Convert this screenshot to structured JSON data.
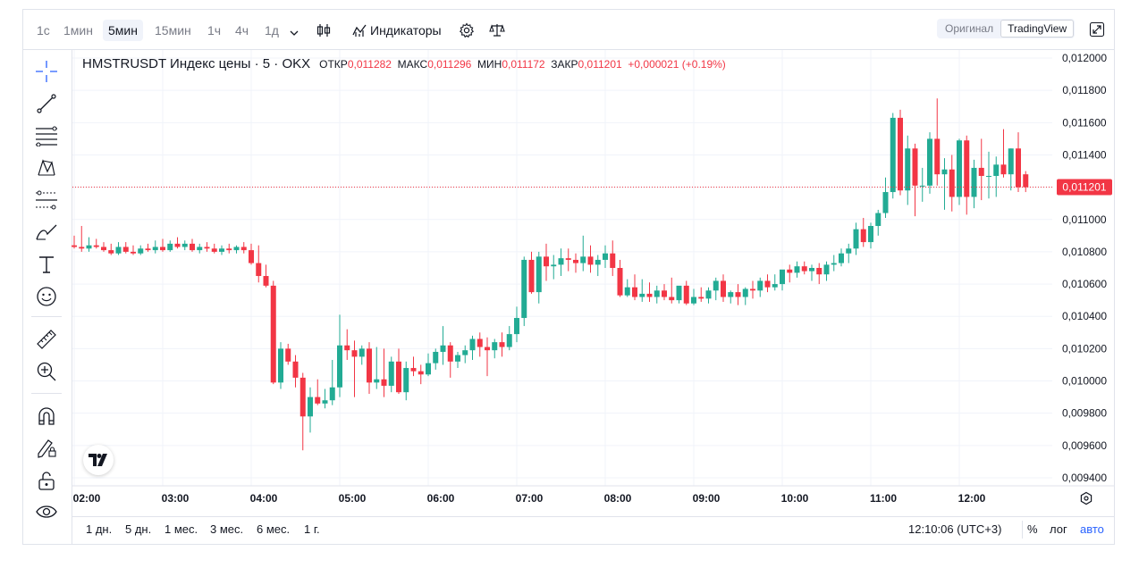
{
  "toolbar": {
    "timeframes": [
      "1с",
      "1мин",
      "5мин",
      "15мин",
      "1ч",
      "4ч",
      "1д"
    ],
    "active_timeframe": "5мин",
    "indicators_label": "Индикаторы",
    "view_options": [
      "Оригинал",
      "TradingView"
    ],
    "active_view": "TradingView"
  },
  "legend": {
    "symbol": "HMSTRUSDT Индекс цены · 5 · OKX",
    "open_label": "ОТКР",
    "open": "0,011282",
    "high_label": "МАКС",
    "high": "0,011296",
    "low_label": "МИН",
    "low": "0,011172",
    "close_label": "ЗАКР",
    "close": "0,011201",
    "change": "+0,000021 (+0.19%)"
  },
  "bottom": {
    "ranges": [
      "1 дн.",
      "5 дн.",
      "1 мес.",
      "3 мес.",
      "6 мес.",
      "1 г."
    ],
    "clock": "12:10:06 (UTC+3)",
    "percent": "%",
    "log": "лог",
    "auto": "авто"
  },
  "logo_text": "TV",
  "colors": {
    "up": "#22ab94",
    "down": "#f23645",
    "grid": "#f0f3fa",
    "price_line": "#f23645"
  },
  "chart_data": {
    "type": "candlestick",
    "price_label": "0,011201",
    "last_price": 0.011201,
    "ylim": [
      0.00935,
      0.01205
    ],
    "y_ticks": [
      {
        "v": 0.012,
        "label": "0,012000"
      },
      {
        "v": 0.0118,
        "label": "0,011800"
      },
      {
        "v": 0.0116,
        "label": "0,011600"
      },
      {
        "v": 0.0114,
        "label": "0,011400"
      },
      {
        "v": 0.0112,
        "label": "0,011200"
      },
      {
        "v": 0.011,
        "label": "0,011000"
      },
      {
        "v": 0.0108,
        "label": "0,010800"
      },
      {
        "v": 0.0106,
        "label": "0,010600"
      },
      {
        "v": 0.0104,
        "label": "0,010400"
      },
      {
        "v": 0.0102,
        "label": "0,010200"
      },
      {
        "v": 0.01,
        "label": "0,010000"
      },
      {
        "v": 0.0098,
        "label": "0,009800"
      },
      {
        "v": 0.0096,
        "label": "0,009600"
      },
      {
        "v": 0.0094,
        "label": "0,009400"
      }
    ],
    "x_ticks": [
      {
        "i": 0,
        "label": "02:00"
      },
      {
        "i": 12,
        "label": "03:00"
      },
      {
        "i": 24,
        "label": "04:00"
      },
      {
        "i": 36,
        "label": "05:00"
      },
      {
        "i": 48,
        "label": "06:00"
      },
      {
        "i": 60,
        "label": "07:00"
      },
      {
        "i": 72,
        "label": "08:00"
      },
      {
        "i": 84,
        "label": "09:00"
      },
      {
        "i": 96,
        "label": "10:00"
      },
      {
        "i": 108,
        "label": "11:00"
      },
      {
        "i": 120,
        "label": "12:00"
      }
    ],
    "candles": [
      [
        0.01084,
        0.0109,
        0.01082,
        0.01083
      ],
      [
        0.01083,
        0.01096,
        0.0108,
        0.01082
      ],
      [
        0.01082,
        0.01089,
        0.0108,
        0.01084
      ],
      [
        0.01084,
        0.01088,
        0.01082,
        0.01083
      ],
      [
        0.01083,
        0.01086,
        0.0108,
        0.01081
      ],
      [
        0.01081,
        0.01085,
        0.01078,
        0.01079
      ],
      [
        0.01079,
        0.01086,
        0.01078,
        0.01083
      ],
      [
        0.01083,
        0.01086,
        0.01079,
        0.0108
      ],
      [
        0.0108,
        0.01084,
        0.01078,
        0.01079
      ],
      [
        0.01079,
        0.01084,
        0.01078,
        0.01082
      ],
      [
        0.01082,
        0.01085,
        0.0108,
        0.01081
      ],
      [
        0.01081,
        0.01087,
        0.01079,
        0.01083
      ],
      [
        0.01083,
        0.01088,
        0.0108,
        0.01081
      ],
      [
        0.01081,
        0.01087,
        0.0108,
        0.01085
      ],
      [
        0.01085,
        0.01089,
        0.01082,
        0.01083
      ],
      [
        0.01083,
        0.01087,
        0.01081,
        0.01085
      ],
      [
        0.01085,
        0.01088,
        0.0108,
        0.01081
      ],
      [
        0.01081,
        0.01085,
        0.01079,
        0.01083
      ],
      [
        0.01083,
        0.01086,
        0.0108,
        0.01082
      ],
      [
        0.01082,
        0.01085,
        0.01079,
        0.0108
      ],
      [
        0.0108,
        0.01084,
        0.01078,
        0.01082
      ],
      [
        0.01082,
        0.01085,
        0.01079,
        0.01081
      ],
      [
        0.01081,
        0.01084,
        0.01079,
        0.01083
      ],
      [
        0.01083,
        0.01086,
        0.01079,
        0.01081
      ],
      [
        0.01081,
        0.01085,
        0.01072,
        0.01073
      ],
      [
        0.01073,
        0.01084,
        0.01061,
        0.01065
      ],
      [
        0.01065,
        0.01072,
        0.01058,
        0.01059
      ],
      [
        0.01059,
        0.01062,
        0.00998,
        0.00999
      ],
      [
        0.00999,
        0.01024,
        0.00995,
        0.0102
      ],
      [
        0.0102,
        0.01023,
        0.0101,
        0.01012
      ],
      [
        0.01012,
        0.01016,
        0.00996,
        0.01002
      ],
      [
        0.01002,
        0.01005,
        0.00957,
        0.00978
      ],
      [
        0.00978,
        0.00996,
        0.00968,
        0.0099
      ],
      [
        0.0099,
        0.01001,
        0.00985,
        0.00986
      ],
      [
        0.00986,
        0.00995,
        0.00983,
        0.00988
      ],
      [
        0.00988,
        0.01013,
        0.00985,
        0.00996
      ],
      [
        0.00996,
        0.01041,
        0.0099,
        0.01022
      ],
      [
        0.01022,
        0.01032,
        0.01013,
        0.01019
      ],
      [
        0.01019,
        0.01025,
        0.0099,
        0.01015
      ],
      [
        0.01015,
        0.01022,
        0.0101,
        0.0102
      ],
      [
        0.0102,
        0.01024,
        0.00992,
        0.00999
      ],
      [
        0.00999,
        0.01021,
        0.00995,
        0.01001
      ],
      [
        0.01001,
        0.0102,
        0.0099,
        0.00997
      ],
      [
        0.00997,
        0.01015,
        0.00993,
        0.01012
      ],
      [
        0.01012,
        0.0102,
        0.00992,
        0.00993
      ],
      [
        0.00993,
        0.01012,
        0.00988,
        0.01008
      ],
      [
        0.01008,
        0.01015,
        0.01003,
        0.01006
      ],
      [
        0.01006,
        0.0101,
        0.00998,
        0.01004
      ],
      [
        0.01004,
        0.01017,
        0.01003,
        0.01011
      ],
      [
        0.01011,
        0.0102,
        0.01007,
        0.01018
      ],
      [
        0.01018,
        0.01034,
        0.0101,
        0.01022
      ],
      [
        0.01022,
        0.01024,
        0.01002,
        0.01012
      ],
      [
        0.01012,
        0.01018,
        0.01008,
        0.01016
      ],
      [
        0.01016,
        0.01022,
        0.01011,
        0.01019
      ],
      [
        0.01019,
        0.01028,
        0.01013,
        0.01026
      ],
      [
        0.01026,
        0.0103,
        0.01015,
        0.01021
      ],
      [
        0.01021,
        0.01027,
        0.01003,
        0.01019
      ],
      [
        0.01019,
        0.01026,
        0.01014,
        0.01024
      ],
      [
        0.01024,
        0.0103,
        0.01015,
        0.01021
      ],
      [
        0.01021,
        0.01034,
        0.01019,
        0.01029
      ],
      [
        0.01029,
        0.01046,
        0.01024,
        0.01039
      ],
      [
        0.01039,
        0.01077,
        0.01034,
        0.01075
      ],
      [
        0.01075,
        0.0108,
        0.01054,
        0.01055
      ],
      [
        0.01055,
        0.0108,
        0.01048,
        0.01077
      ],
      [
        0.01077,
        0.01085,
        0.01062,
        0.01071
      ],
      [
        0.01071,
        0.01078,
        0.01063,
        0.01072
      ],
      [
        0.01072,
        0.01082,
        0.01065,
        0.01076
      ],
      [
        0.01076,
        0.01082,
        0.01068,
        0.01075
      ],
      [
        0.01075,
        0.01079,
        0.01067,
        0.01073
      ],
      [
        0.01073,
        0.0109,
        0.01068,
        0.01077
      ],
      [
        0.01077,
        0.01084,
        0.01067,
        0.01072
      ],
      [
        0.01072,
        0.01078,
        0.01065,
        0.01075
      ],
      [
        0.01075,
        0.01084,
        0.0107,
        0.01079
      ],
      [
        0.01079,
        0.01087,
        0.01065,
        0.0107
      ],
      [
        0.0107,
        0.01075,
        0.01052,
        0.01053
      ],
      [
        0.01053,
        0.01063,
        0.01052,
        0.01058
      ],
      [
        0.01058,
        0.01066,
        0.0105,
        0.01052
      ],
      [
        0.01052,
        0.01063,
        0.01049,
        0.01054
      ],
      [
        0.01054,
        0.01061,
        0.01049,
        0.01052
      ],
      [
        0.01052,
        0.01059,
        0.01048,
        0.01056
      ],
      [
        0.01056,
        0.0106,
        0.0105,
        0.01052
      ],
      [
        0.01052,
        0.01064,
        0.01048,
        0.0105
      ],
      [
        0.0105,
        0.01058,
        0.01048,
        0.01059
      ],
      [
        0.01059,
        0.01062,
        0.01047,
        0.01048
      ],
      [
        0.01048,
        0.01057,
        0.01047,
        0.01052
      ],
      [
        0.01052,
        0.01058,
        0.01049,
        0.01051
      ],
      [
        0.01051,
        0.01058,
        0.01048,
        0.01056
      ],
      [
        0.01056,
        0.01064,
        0.0105,
        0.01062
      ],
      [
        0.01062,
        0.01066,
        0.01049,
        0.01052
      ],
      [
        0.01052,
        0.01056,
        0.01048,
        0.01055
      ],
      [
        0.01055,
        0.0106,
        0.01047,
        0.01052
      ],
      [
        0.01052,
        0.01058,
        0.01047,
        0.01057
      ],
      [
        0.01057,
        0.01062,
        0.01051,
        0.01056
      ],
      [
        0.01056,
        0.01064,
        0.01052,
        0.01062
      ],
      [
        0.01062,
        0.01066,
        0.01055,
        0.01058
      ],
      [
        0.01058,
        0.01066,
        0.01056,
        0.0106
      ],
      [
        0.0106,
        0.01068,
        0.01056,
        0.01069
      ],
      [
        0.01069,
        0.01072,
        0.01061,
        0.01067
      ],
      [
        0.01067,
        0.01074,
        0.01064,
        0.01071
      ],
      [
        0.01071,
        0.01074,
        0.01066,
        0.01068
      ],
      [
        0.01068,
        0.01072,
        0.01062,
        0.0107
      ],
      [
        0.0107,
        0.01073,
        0.0106,
        0.01066
      ],
      [
        0.01066,
        0.01074,
        0.01062,
        0.01072
      ],
      [
        0.01072,
        0.01078,
        0.01068,
        0.01073
      ],
      [
        0.01073,
        0.01082,
        0.01071,
        0.01079
      ],
      [
        0.01079,
        0.01085,
        0.01073,
        0.01082
      ],
      [
        0.01082,
        0.01098,
        0.01078,
        0.01094
      ],
      [
        0.01094,
        0.01101,
        0.01083,
        0.01086
      ],
      [
        0.01086,
        0.01098,
        0.01082,
        0.01096
      ],
      [
        0.01096,
        0.01106,
        0.0109,
        0.01104
      ],
      [
        0.01104,
        0.01126,
        0.01101,
        0.01117
      ],
      [
        0.01117,
        0.01166,
        0.01113,
        0.01163
      ],
      [
        0.01163,
        0.01168,
        0.01115,
        0.01118
      ],
      [
        0.01118,
        0.01152,
        0.01109,
        0.01144
      ],
      [
        0.01144,
        0.01147,
        0.01102,
        0.01121
      ],
      [
        0.01121,
        0.01132,
        0.01111,
        0.01121
      ],
      [
        0.01121,
        0.01154,
        0.01116,
        0.0115
      ],
      [
        0.0115,
        0.01175,
        0.01121,
        0.01128
      ],
      [
        0.01128,
        0.01138,
        0.01106,
        0.01131
      ],
      [
        0.01131,
        0.0114,
        0.01105,
        0.01114
      ],
      [
        0.01114,
        0.0115,
        0.01109,
        0.01149
      ],
      [
        0.01149,
        0.01152,
        0.01103,
        0.01114
      ],
      [
        0.01114,
        0.01137,
        0.01107,
        0.01132
      ],
      [
        0.01132,
        0.0115,
        0.01112,
        0.01127
      ],
      [
        0.01127,
        0.01142,
        0.01113,
        0.01127
      ],
      [
        0.01127,
        0.01139,
        0.01114,
        0.01134
      ],
      [
        0.01134,
        0.01156,
        0.01126,
        0.01128
      ],
      [
        0.01128,
        0.01144,
        0.01118,
        0.01144
      ],
      [
        0.01144,
        0.01154,
        0.01117,
        0.0112
      ],
      [
        0.01128,
        0.0113,
        0.01117,
        0.0112
      ]
    ]
  }
}
